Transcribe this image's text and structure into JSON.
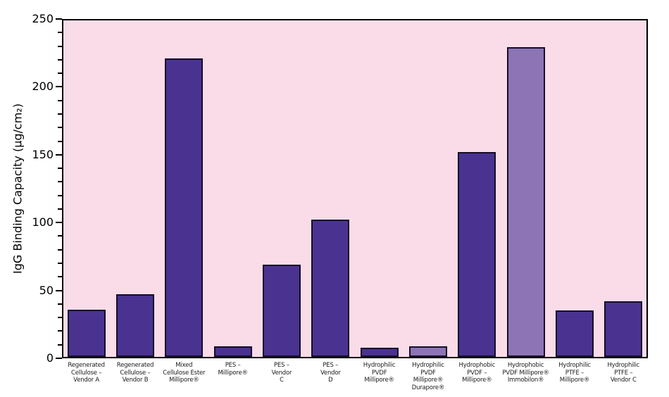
{
  "chart_data": {
    "type": "bar",
    "title": "",
    "ylabel": "IgG Binding Capacity (µg/cm₂)",
    "xlabel": "",
    "ylim": [
      0,
      250
    ],
    "yticks": [
      0,
      50,
      100,
      150,
      200,
      250
    ],
    "minor_tick_step": 10,
    "grid": false,
    "legend": "none",
    "categories": [
      "Regenerated Cellulose – Vendor A",
      "Regenerated Cellulose – Vendor B",
      "Mixed Cellulose Ester Millipore®",
      "PES – Millipore®",
      "PES – Vendor C",
      "PES – Vendor D",
      "Hydrophilic PVDF Millipore®",
      "Hydrophilic PVDF Millipore® Durapore®",
      "Hydrophobic PVDF – Millipore®",
      "Hydrophobic PVDF Millipore® Immobilon®",
      "Hydrophilic PTFE – Millipore®",
      "Hydrophilic PTFE – Vendor C"
    ],
    "category_lines": [
      [
        "Regenerated",
        "Cellulose –",
        "Vendor A"
      ],
      [
        "Regenerated",
        "Cellulose –",
        "Vendor B"
      ],
      [
        "Mixed",
        "Cellulose Ester",
        "Millipore®"
      ],
      [
        "PES –",
        "Millipore®"
      ],
      [
        "PES –",
        "Vendor",
        "C"
      ],
      [
        "PES –",
        "Vendor",
        "D"
      ],
      [
        "Hydrophilic",
        "PVDF",
        "Millipore®"
      ],
      [
        "Hydrophilic",
        "PVDF",
        "Millipore®",
        "Durapore®"
      ],
      [
        "Hydrophobic",
        "PVDF –",
        "Millipore®"
      ],
      [
        "Hydrophobic",
        "PVDF Millipore®",
        "Immobilon®"
      ],
      [
        "Hydrophilic",
        "PTFE –",
        "Millipore®"
      ],
      [
        "Hydrophilic",
        "PTFE –",
        "Vendor C"
      ]
    ],
    "values": [
      35,
      46,
      220,
      8,
      68,
      101,
      7,
      8,
      151,
      228,
      34,
      41
    ],
    "bar_style": [
      "dark",
      "dark",
      "dark",
      "dark",
      "dark",
      "dark",
      "dark",
      "light",
      "dark",
      "light",
      "dark",
      "dark"
    ],
    "colors": {
      "bar_dark": "#4A3291",
      "bar_light": "#8C74B5",
      "bar_outline": "#150D26",
      "plot_background": "#FADCE9",
      "axis": "#000000",
      "page_background": "#FFFFFF"
    }
  }
}
